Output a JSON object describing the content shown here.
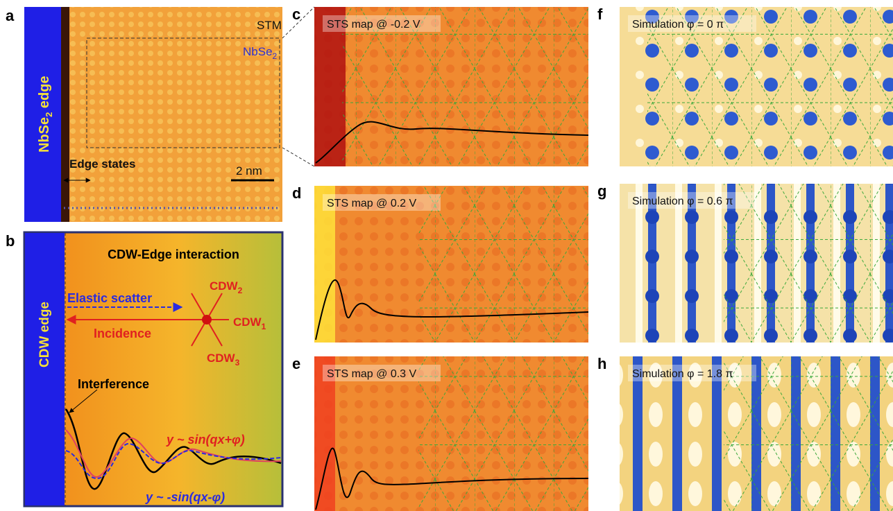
{
  "panels": {
    "a": {
      "letter": "a",
      "stm": "STM",
      "material": {
        "main": "NbSe",
        "sub": "2"
      },
      "edge": {
        "main": "NbSe",
        "sub": "2",
        "rest": " edge"
      },
      "edge_states": "Edge states",
      "scale": "2 nm"
    },
    "b": {
      "letter": "b",
      "title": "CDW-Edge interaction",
      "edge": "CDW edge",
      "elastic": "Elastic scatter",
      "incidence": "Incidence",
      "cdw2": {
        "main": "CDW",
        "sub": "2"
      },
      "cdw1": {
        "main": "CDW",
        "sub": "1"
      },
      "cdw3": {
        "main": "CDW",
        "sub": "3"
      },
      "interference": "Interference",
      "eq1": "y ~ sin(qx+φ)",
      "eq2": "y ~ -sin(qx-φ)"
    },
    "c": {
      "letter": "c",
      "label": "STS map @ -0.2 V"
    },
    "d": {
      "letter": "d",
      "label": "STS map @ 0.2 V"
    },
    "e": {
      "letter": "e",
      "label": "STS map @ 0.3 V"
    },
    "f": {
      "letter": "f",
      "label": "Simulation φ = 0 π"
    },
    "g": {
      "letter": "g",
      "label": "Simulation φ = 0.6 π"
    },
    "h": {
      "letter": "h",
      "label": "Simulation φ = 1.8 π"
    }
  }
}
